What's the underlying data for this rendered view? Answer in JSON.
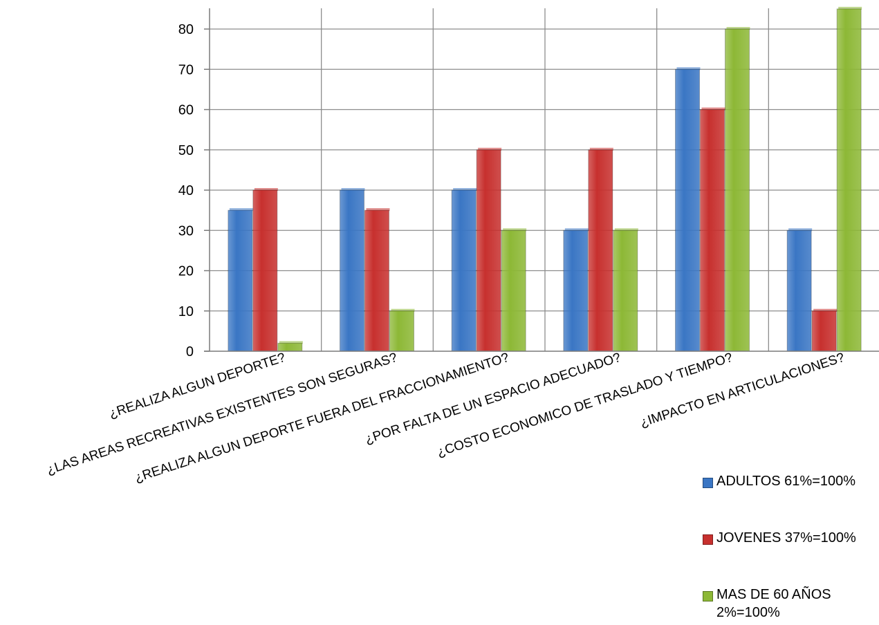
{
  "chart_data": {
    "type": "bar",
    "categories": [
      "¿REALIZA ALGUN DEPORTE?",
      "¿LAS AREAS RECREATIVAS EXISTENTES SON SEGURAS?",
      "¿REALIZA ALGUN DEPORTE FUERA DEL FRACCIONAMIENTO?",
      "¿POR FALTA DE UN ESPACIO ADECUADO?",
      "¿COSTO ECONOMICO DE TRASLADO Y TIEMPO?",
      "¿IMPACTO EN ARTICULACIONES?"
    ],
    "series": [
      {
        "name": "ADULTOS 61%=100%",
        "color": "#3A76C4",
        "values": [
          35,
          40,
          40,
          30,
          70,
          30
        ]
      },
      {
        "name": "JOVENES 37%=100%",
        "color": "#C7302E",
        "values": [
          40,
          35,
          50,
          50,
          60,
          10
        ]
      },
      {
        "name": "MAS DE 60 AÑOS 2%=100%",
        "color": "#8DB836",
        "values": [
          2,
          10,
          30,
          30,
          80,
          85
        ]
      }
    ],
    "y_ticks": [
      "0",
      "10",
      "20",
      "30",
      "40",
      "50",
      "60",
      "70",
      "80"
    ],
    "ylim": [
      0,
      85
    ],
    "grid": true,
    "legend_position": "bottom-right"
  }
}
